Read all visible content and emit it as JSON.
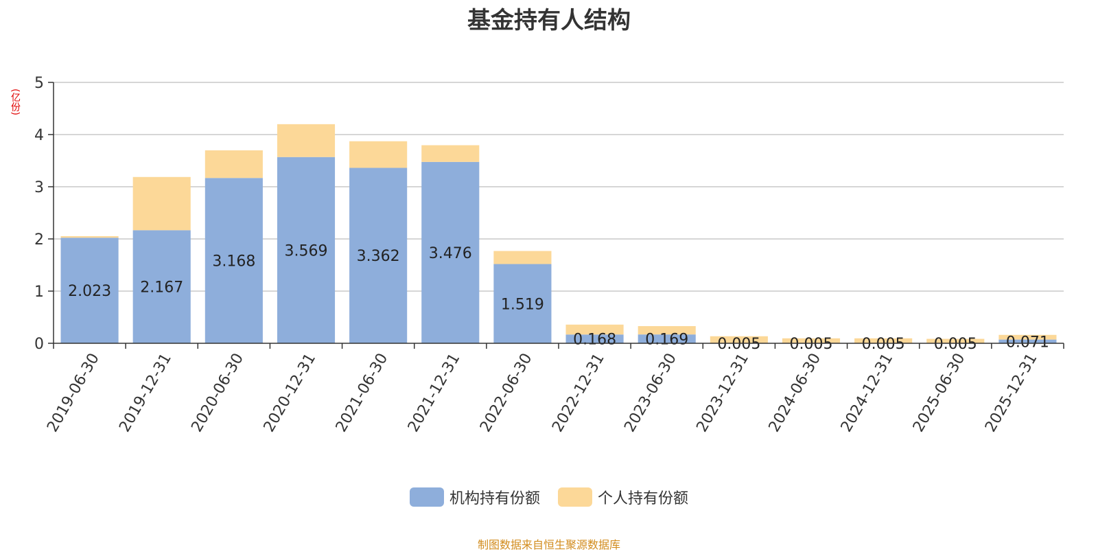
{
  "colors": {
    "institution": "#8eaedb",
    "individual": "#fcd898",
    "grid": "#c8c8c8",
    "axis": "#333333",
    "unit": "#e00000",
    "source": "#d28c1e"
  },
  "chart_data": {
    "type": "bar",
    "stacked": true,
    "title": "基金持有人结构",
    "unit_label": "(亿份)",
    "categories": [
      "2019-06-30",
      "2019-12-31",
      "2020-06-30",
      "2020-12-31",
      "2021-06-30",
      "2021-12-31",
      "2022-06-30",
      "2022-12-31",
      "2023-06-30",
      "2023-12-31",
      "2024-06-30",
      "2024-12-31",
      "2025-06-30",
      "2025-12-31"
    ],
    "series": [
      {
        "name": "机构持有份额",
        "values": [
          2.023,
          2.167,
          3.168,
          3.569,
          3.362,
          3.476,
          1.519,
          0.168,
          0.169,
          0.005,
          0.005,
          0.005,
          0.005,
          0.071
        ],
        "labels": [
          "2.023",
          "2.167",
          "3.168",
          "3.569",
          "3.362",
          "3.476",
          "1.519",
          "0.168",
          "0.169",
          "0.005",
          "0.005",
          "0.005",
          "0.005",
          "0.071"
        ]
      },
      {
        "name": "个人持有份额",
        "values": [
          0.03,
          1.02,
          0.53,
          0.63,
          0.51,
          0.32,
          0.25,
          0.19,
          0.16,
          0.13,
          0.09,
          0.09,
          0.08,
          0.09
        ]
      }
    ],
    "ylim": [
      0,
      5
    ],
    "yticks": [
      0,
      1,
      2,
      3,
      4,
      5
    ],
    "legend_position": "bottom",
    "grid": true
  },
  "legend": [
    {
      "label": "机构持有份额",
      "color": "#8eaedb"
    },
    {
      "label": "个人持有份额",
      "color": "#fcd898"
    }
  ],
  "source_note": "制图数据来自恒生聚源数据库"
}
